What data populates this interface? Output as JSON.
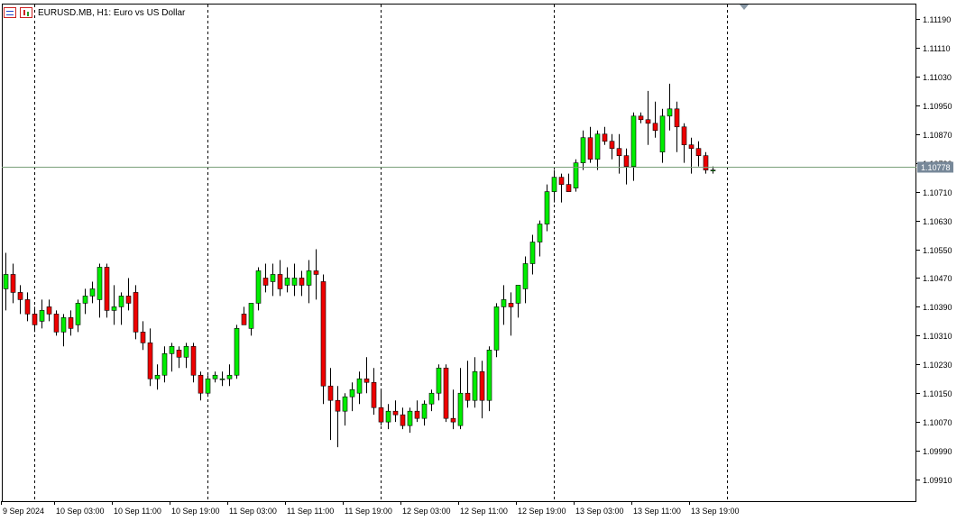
{
  "header": {
    "symbol_title": "EURUSD.MB, H1:  Euro vs US Dollar",
    "icons": [
      "chart-settings-icon",
      "candles-icon"
    ]
  },
  "colors": {
    "bull": "#00ee00",
    "bear": "#ee0000",
    "wick": "#000000",
    "grid": "#000000",
    "bid_line": "#7aa07a",
    "price_badge": "#778899"
  },
  "current_price": {
    "label": "1.10778",
    "value": 1.10778
  },
  "chart_data": {
    "type": "candlestick",
    "title": "EURUSD.MB, H1:  Euro vs US Dollar",
    "timeframe": "H1",
    "ylim": [
      1.0985,
      1.1123
    ],
    "y_ticks": [
      {
        "value": 1.1119,
        "label": "1.11190"
      },
      {
        "value": 1.1111,
        "label": "1.11110"
      },
      {
        "value": 1.1103,
        "label": "1.11030"
      },
      {
        "value": 1.1095,
        "label": "1.10950"
      },
      {
        "value": 1.1087,
        "label": "1.10870"
      },
      {
        "value": 1.1079,
        "label": "1.10790"
      },
      {
        "value": 1.1071,
        "label": "1.10710"
      },
      {
        "value": 1.1063,
        "label": "1.10630"
      },
      {
        "value": 1.1055,
        "label": "1.10550"
      },
      {
        "value": 1.1047,
        "label": "1.10470"
      },
      {
        "value": 1.1039,
        "label": "1.10390"
      },
      {
        "value": 1.1031,
        "label": "1.10310"
      },
      {
        "value": 1.1023,
        "label": "1.10230"
      },
      {
        "value": 1.1015,
        "label": "1.10150"
      },
      {
        "value": 1.1007,
        "label": "1.10070"
      },
      {
        "value": 1.0999,
        "label": "1.09990"
      },
      {
        "value": 1.0991,
        "label": "1.09910"
      }
    ],
    "x_labels": [
      {
        "bar": -1,
        "label": "9 Sep 2024"
      },
      {
        "bar": 7,
        "label": "10 Sep 03:00"
      },
      {
        "bar": 15,
        "label": "10 Sep 11:00"
      },
      {
        "bar": 23,
        "label": "10 Sep 19:00"
      },
      {
        "bar": 31,
        "label": "11 Sep 03:00"
      },
      {
        "bar": 39,
        "label": "11 Sep 11:00"
      },
      {
        "bar": 47,
        "label": "11 Sep 19:00"
      },
      {
        "bar": 55,
        "label": "12 Sep 03:00"
      },
      {
        "bar": 63,
        "label": "12 Sep 11:00"
      },
      {
        "bar": 71,
        "label": "12 Sep 19:00"
      },
      {
        "bar": 79,
        "label": "13 Sep 03:00"
      },
      {
        "bar": 87,
        "label": "13 Sep 11:00"
      },
      {
        "bar": 95,
        "label": "13 Sep 19:00"
      }
    ],
    "day_separators_at_bar": [
      4,
      28,
      52,
      76,
      100
    ],
    "grid": false,
    "candles": [
      [
        1.1044,
        1.1054,
        1.1038,
        1.1048
      ],
      [
        1.1048,
        1.1051,
        1.104,
        1.1043
      ],
      [
        1.1043,
        1.1045,
        1.1037,
        1.1041
      ],
      [
        1.1041,
        1.1043,
        1.1035,
        1.1037
      ],
      [
        1.1037,
        1.1039,
        1.1032,
        1.1034
      ],
      [
        1.1035,
        1.1041,
        1.1033,
        1.1038
      ],
      [
        1.1039,
        1.1041,
        1.1035,
        1.1037
      ],
      [
        1.1037,
        1.1038,
        1.1031,
        1.1032
      ],
      [
        1.1032,
        1.1037,
        1.1028,
        1.1036
      ],
      [
        1.1036,
        1.1038,
        1.1031,
        1.1033
      ],
      [
        1.1034,
        1.1041,
        1.1032,
        1.104
      ],
      [
        1.104,
        1.1044,
        1.1037,
        1.1042
      ],
      [
        1.1042,
        1.1046,
        1.104,
        1.1044
      ],
      [
        1.1041,
        1.1051,
        1.1036,
        1.105
      ],
      [
        1.105,
        1.1051,
        1.1036,
        1.1038
      ],
      [
        1.1038,
        1.1045,
        1.1034,
        1.1039
      ],
      [
        1.1039,
        1.1043,
        1.1034,
        1.1042
      ],
      [
        1.1042,
        1.1047,
        1.1038,
        1.104
      ],
      [
        1.1043,
        1.1045,
        1.103,
        1.1032
      ],
      [
        1.1032,
        1.1035,
        1.1027,
        1.1029
      ],
      [
        1.1029,
        1.1033,
        1.1017,
        1.1019
      ],
      [
        1.1019,
        1.1023,
        1.1016,
        1.102
      ],
      [
        1.102,
        1.1028,
        1.1018,
        1.1026
      ],
      [
        1.1026,
        1.1029,
        1.1021,
        1.1028
      ],
      [
        1.1027,
        1.1028,
        1.1022,
        1.1025
      ],
      [
        1.1025,
        1.1029,
        1.1022,
        1.1028
      ],
      [
        1.1028,
        1.1029,
        1.1018,
        1.102
      ],
      [
        1.102,
        1.1021,
        1.1013,
        1.1015
      ],
      [
        1.1015,
        1.102,
        1.1014,
        1.1019
      ],
      [
        1.1019,
        1.1021,
        1.1018,
        1.102
      ],
      [
        1.1019,
        1.1021,
        1.1017,
        1.1019
      ],
      [
        1.1019,
        1.1023,
        1.1017,
        1.102
      ],
      [
        1.102,
        1.1034,
        1.1019,
        1.1033
      ],
      [
        1.1037,
        1.1039,
        1.1034,
        1.1034
      ],
      [
        1.1033,
        1.104,
        1.1031,
        1.104
      ],
      [
        1.104,
        1.105,
        1.1038,
        1.1049
      ],
      [
        1.1047,
        1.1051,
        1.1043,
        1.1045
      ],
      [
        1.1046,
        1.1051,
        1.1042,
        1.1048
      ],
      [
        1.1048,
        1.1052,
        1.1042,
        1.1044
      ],
      [
        1.1045,
        1.105,
        1.1043,
        1.1047
      ],
      [
        1.1045,
        1.1051,
        1.1042,
        1.1047
      ],
      [
        1.1047,
        1.1049,
        1.1042,
        1.1045
      ],
      [
        1.1045,
        1.1052,
        1.104,
        1.1049
      ],
      [
        1.1049,
        1.1055,
        1.1041,
        1.1048
      ],
      [
        1.1046,
        1.1048,
        1.1012,
        1.1017
      ],
      [
        1.1017,
        1.1022,
        1.1002,
        1.1013
      ],
      [
        1.1013,
        1.1017,
        1.1,
        1.101
      ],
      [
        1.101,
        1.1015,
        1.1006,
        1.1014
      ],
      [
        1.1014,
        1.1018,
        1.101,
        1.1016
      ],
      [
        1.1015,
        1.1021,
        1.1012,
        1.1019
      ],
      [
        1.1019,
        1.1025,
        1.1015,
        1.1018
      ],
      [
        1.1018,
        1.1022,
        1.1009,
        1.1011
      ],
      [
        1.1011,
        1.1016,
        1.1006,
        1.1007
      ],
      [
        1.1007,
        1.1012,
        1.1005,
        1.101
      ],
      [
        1.101,
        1.1013,
        1.1007,
        1.1009
      ],
      [
        1.1009,
        1.1011,
        1.1005,
        1.1006
      ],
      [
        1.1006,
        1.1011,
        1.1004,
        1.101
      ],
      [
        1.101,
        1.1013,
        1.1007,
        1.1008
      ],
      [
        1.1008,
        1.1013,
        1.1006,
        1.1012
      ],
      [
        1.1012,
        1.1016,
        1.101,
        1.1015
      ],
      [
        1.1015,
        1.1023,
        1.1013,
        1.1022
      ],
      [
        1.1022,
        1.1023,
        1.1007,
        1.1008
      ],
      [
        1.1008,
        1.1016,
        1.1005,
        1.1007
      ],
      [
        1.1006,
        1.1022,
        1.1005,
        1.1015
      ],
      [
        1.1015,
        1.1024,
        1.1011,
        1.1013
      ],
      [
        1.1013,
        1.1025,
        1.1011,
        1.1021
      ],
      [
        1.1021,
        1.1024,
        1.1008,
        1.1013
      ],
      [
        1.1013,
        1.1028,
        1.101,
        1.1027
      ],
      [
        1.1027,
        1.104,
        1.1025,
        1.1039
      ],
      [
        1.1039,
        1.1045,
        1.1034,
        1.1041
      ],
      [
        1.104,
        1.1043,
        1.1031,
        1.1039
      ],
      [
        1.104,
        1.1045,
        1.1036,
        1.1045
      ],
      [
        1.1044,
        1.1053,
        1.104,
        1.1051
      ],
      [
        1.1051,
        1.1059,
        1.1048,
        1.1057
      ],
      [
        1.1057,
        1.1063,
        1.1053,
        1.1062
      ],
      [
        1.1062,
        1.1073,
        1.106,
        1.1071
      ],
      [
        1.1071,
        1.1077,
        1.1068,
        1.1075
      ],
      [
        1.1075,
        1.1076,
        1.1068,
        1.1073
      ],
      [
        1.1073,
        1.1076,
        1.1071,
        1.1071
      ],
      [
        1.1072,
        1.108,
        1.1071,
        1.1079
      ],
      [
        1.1079,
        1.1088,
        1.1077,
        1.1086
      ],
      [
        1.1086,
        1.1089,
        1.1079,
        1.108
      ],
      [
        1.108,
        1.1088,
        1.1077,
        1.1087
      ],
      [
        1.1087,
        1.1089,
        1.1084,
        1.1085
      ],
      [
        1.1085,
        1.1087,
        1.108,
        1.1083
      ],
      [
        1.1083,
        1.1087,
        1.1076,
        1.1081
      ],
      [
        1.1081,
        1.1083,
        1.1073,
        1.1078
      ],
      [
        1.1078,
        1.1093,
        1.1074,
        1.1092
      ],
      [
        1.1092,
        1.1093,
        1.109,
        1.1091
      ],
      [
        1.1091,
        1.1099,
        1.1084,
        1.109
      ],
      [
        1.109,
        1.1096,
        1.1086,
        1.1088
      ],
      [
        1.1082,
        1.1094,
        1.1079,
        1.1092
      ],
      [
        1.1092,
        1.1101,
        1.1088,
        1.1094
      ],
      [
        1.1094,
        1.1096,
        1.1082,
        1.1089
      ],
      [
        1.1089,
        1.109,
        1.1079,
        1.1084
      ],
      [
        1.1084,
        1.1086,
        1.1076,
        1.1083
      ],
      [
        1.1083,
        1.1085,
        1.1078,
        1.1081
      ],
      [
        1.1081,
        1.1082,
        1.1076,
        1.1077
      ],
      [
        1.1077,
        1.1078,
        1.1076,
        1.1077
      ]
    ]
  }
}
